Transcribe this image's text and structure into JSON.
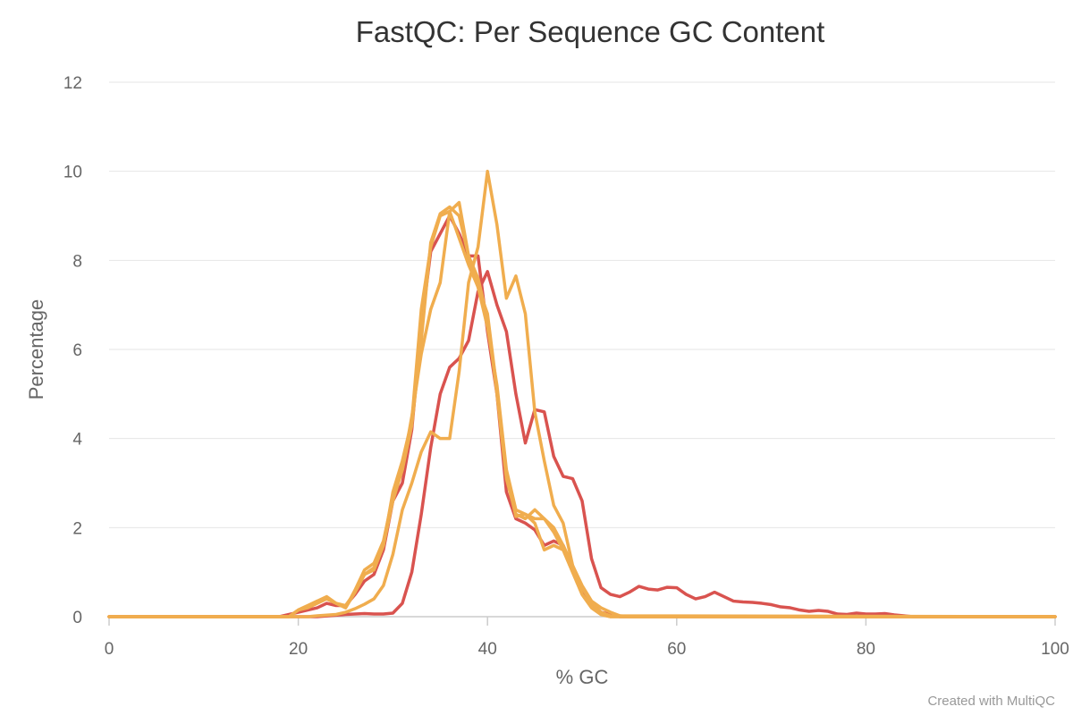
{
  "chart_data": {
    "type": "line",
    "title": "FastQC: Per Sequence GC Content",
    "xlabel": "% GC",
    "ylabel": "Percentage",
    "xlim": [
      0,
      100
    ],
    "ylim": [
      0,
      12
    ],
    "xticks": [
      0,
      20,
      40,
      60,
      80,
      100
    ],
    "yticks": [
      0,
      2,
      4,
      6,
      8,
      10,
      12
    ],
    "grid": true,
    "legend": "none",
    "credit": "Created with MultiQC",
    "series": [
      {
        "color": "#d9534f",
        "points": [
          [
            0,
            0
          ],
          [
            18,
            0
          ],
          [
            20,
            0.1
          ],
          [
            22,
            0.2
          ],
          [
            23,
            0.3
          ],
          [
            24,
            0.25
          ],
          [
            25,
            0.25
          ],
          [
            26,
            0.5
          ],
          [
            27,
            0.8
          ],
          [
            28,
            0.95
          ],
          [
            29,
            1.5
          ],
          [
            30,
            2.6
          ],
          [
            31,
            3.0
          ],
          [
            32,
            4.2
          ],
          [
            33,
            6.5
          ],
          [
            34,
            8.2
          ],
          [
            35,
            8.6
          ],
          [
            36,
            9.0
          ],
          [
            37,
            8.6
          ],
          [
            38,
            8.1
          ],
          [
            39,
            8.1
          ],
          [
            40,
            6.4
          ],
          [
            41,
            5.0
          ],
          [
            42,
            2.8
          ],
          [
            43,
            2.2
          ],
          [
            44,
            2.1
          ],
          [
            45,
            1.95
          ],
          [
            46,
            1.6
          ],
          [
            47,
            1.7
          ],
          [
            48,
            1.6
          ],
          [
            49,
            1.1
          ],
          [
            50,
            0.6
          ],
          [
            51,
            0.3
          ],
          [
            52,
            0.1
          ],
          [
            54,
            0
          ],
          [
            100,
            0
          ]
        ]
      },
      {
        "color": "#d9534f",
        "points": [
          [
            0,
            0
          ],
          [
            22,
            0
          ],
          [
            25,
            0.05
          ],
          [
            27,
            0.07
          ],
          [
            28,
            0.06
          ],
          [
            29,
            0.06
          ],
          [
            30,
            0.08
          ],
          [
            31,
            0.3
          ],
          [
            32,
            1.0
          ],
          [
            33,
            2.3
          ],
          [
            34,
            3.8
          ],
          [
            35,
            5.0
          ],
          [
            36,
            5.6
          ],
          [
            37,
            5.8
          ],
          [
            38,
            6.2
          ],
          [
            39,
            7.3
          ],
          [
            40,
            7.75
          ],
          [
            41,
            7.0
          ],
          [
            42,
            6.4
          ],
          [
            43,
            5.0
          ],
          [
            44,
            3.9
          ],
          [
            45,
            4.65
          ],
          [
            46,
            4.6
          ],
          [
            47,
            3.6
          ],
          [
            48,
            3.15
          ],
          [
            49,
            3.1
          ],
          [
            50,
            2.6
          ],
          [
            51,
            1.3
          ],
          [
            52,
            0.65
          ],
          [
            53,
            0.5
          ],
          [
            54,
            0.45
          ],
          [
            55,
            0.55
          ],
          [
            56,
            0.68
          ],
          [
            57,
            0.62
          ],
          [
            58,
            0.6
          ],
          [
            59,
            0.66
          ],
          [
            60,
            0.65
          ],
          [
            61,
            0.5
          ],
          [
            62,
            0.4
          ],
          [
            63,
            0.45
          ],
          [
            64,
            0.55
          ],
          [
            65,
            0.45
          ],
          [
            66,
            0.35
          ],
          [
            67,
            0.33
          ],
          [
            68,
            0.32
          ],
          [
            69,
            0.3
          ],
          [
            70,
            0.27
          ],
          [
            71,
            0.22
          ],
          [
            72,
            0.2
          ],
          [
            73,
            0.15
          ],
          [
            74,
            0.12
          ],
          [
            75,
            0.14
          ],
          [
            76,
            0.12
          ],
          [
            77,
            0.06
          ],
          [
            78,
            0.05
          ],
          [
            79,
            0.08
          ],
          [
            80,
            0.06
          ],
          [
            81,
            0.06
          ],
          [
            82,
            0.07
          ],
          [
            83,
            0.04
          ],
          [
            84,
            0.02
          ],
          [
            85,
            0
          ],
          [
            100,
            0
          ]
        ]
      },
      {
        "color": "#f0ad4e",
        "points": [
          [
            0,
            0
          ],
          [
            19,
            0
          ],
          [
            20,
            0.15
          ],
          [
            21,
            0.2
          ],
          [
            22,
            0.3
          ],
          [
            23,
            0.4
          ],
          [
            24,
            0.3
          ],
          [
            25,
            0.2
          ],
          [
            26,
            0.55
          ],
          [
            27,
            0.95
          ],
          [
            28,
            1.05
          ],
          [
            29,
            1.6
          ],
          [
            30,
            2.8
          ],
          [
            31,
            3.5
          ],
          [
            32,
            4.4
          ],
          [
            33,
            6.9
          ],
          [
            34,
            8.3
          ],
          [
            35,
            9.0
          ],
          [
            36,
            9.1
          ],
          [
            37,
            8.5
          ],
          [
            38,
            7.9
          ],
          [
            39,
            7.4
          ],
          [
            40,
            6.8
          ],
          [
            41,
            5.1
          ],
          [
            42,
            3.2
          ],
          [
            43,
            2.25
          ],
          [
            44,
            2.3
          ],
          [
            45,
            2.2
          ],
          [
            46,
            2.2
          ],
          [
            47,
            2.0
          ],
          [
            48,
            1.6
          ],
          [
            49,
            1.15
          ],
          [
            50,
            0.65
          ],
          [
            51,
            0.3
          ],
          [
            52,
            0.1
          ],
          [
            53,
            0.02
          ],
          [
            100,
            0
          ]
        ]
      },
      {
        "color": "#f0ad4e",
        "points": [
          [
            0,
            0
          ],
          [
            19,
            0
          ],
          [
            20,
            0.15
          ],
          [
            21,
            0.25
          ],
          [
            22,
            0.35
          ],
          [
            23,
            0.45
          ],
          [
            24,
            0.3
          ],
          [
            25,
            0.2
          ],
          [
            26,
            0.6
          ],
          [
            27,
            1.05
          ],
          [
            28,
            1.2
          ],
          [
            29,
            1.7
          ],
          [
            30,
            2.7
          ],
          [
            31,
            3.3
          ],
          [
            32,
            4.3
          ],
          [
            33,
            6.2
          ],
          [
            34,
            8.4
          ],
          [
            35,
            9.05
          ],
          [
            36,
            9.2
          ],
          [
            37,
            9.0
          ],
          [
            38,
            8.1
          ],
          [
            39,
            7.6
          ],
          [
            40,
            6.7
          ],
          [
            41,
            5.0
          ],
          [
            42,
            3.1
          ],
          [
            43,
            2.3
          ],
          [
            44,
            2.2
          ],
          [
            45,
            2.4
          ],
          [
            46,
            2.2
          ],
          [
            47,
            1.9
          ],
          [
            48,
            1.5
          ],
          [
            49,
            1.0
          ],
          [
            50,
            0.5
          ],
          [
            51,
            0.2
          ],
          [
            52,
            0.05
          ],
          [
            53,
            0
          ],
          [
            100,
            0
          ]
        ]
      },
      {
        "color": "#f0ad4e",
        "points": [
          [
            0,
            0
          ],
          [
            19,
            0
          ],
          [
            20,
            0.15
          ],
          [
            21,
            0.25
          ],
          [
            22,
            0.35
          ],
          [
            23,
            0.4
          ],
          [
            24,
            0.3
          ],
          [
            25,
            0.25
          ],
          [
            26,
            0.55
          ],
          [
            27,
            0.95
          ],
          [
            28,
            1.1
          ],
          [
            29,
            1.6
          ],
          [
            30,
            2.6
          ],
          [
            31,
            3.3
          ],
          [
            32,
            4.5
          ],
          [
            33,
            5.9
          ],
          [
            34,
            6.9
          ],
          [
            35,
            7.5
          ],
          [
            36,
            9.1
          ],
          [
            37,
            9.3
          ],
          [
            38,
            8.1
          ],
          [
            39,
            7.4
          ],
          [
            40,
            6.5
          ],
          [
            41,
            5.2
          ],
          [
            42,
            3.3
          ],
          [
            43,
            2.4
          ],
          [
            44,
            2.3
          ],
          [
            45,
            2.1
          ],
          [
            46,
            1.5
          ],
          [
            47,
            1.6
          ],
          [
            48,
            1.5
          ],
          [
            49,
            1.0
          ],
          [
            50,
            0.5
          ],
          [
            51,
            0.2
          ],
          [
            52,
            0.05
          ],
          [
            53,
            0
          ],
          [
            100,
            0
          ]
        ]
      },
      {
        "color": "#f0ad4e",
        "points": [
          [
            0,
            0
          ],
          [
            21,
            0
          ],
          [
            22,
            0.02
          ],
          [
            24,
            0.05
          ],
          [
            25,
            0.1
          ],
          [
            26,
            0.18
          ],
          [
            27,
            0.28
          ],
          [
            28,
            0.4
          ],
          [
            29,
            0.7
          ],
          [
            30,
            1.4
          ],
          [
            31,
            2.4
          ],
          [
            32,
            3.0
          ],
          [
            33,
            3.7
          ],
          [
            34,
            4.15
          ],
          [
            35,
            4.0
          ],
          [
            36,
            4.0
          ],
          [
            37,
            5.5
          ],
          [
            38,
            7.5
          ],
          [
            39,
            8.3
          ],
          [
            40,
            10.0
          ],
          [
            41,
            8.8
          ],
          [
            42,
            7.15
          ],
          [
            43,
            7.65
          ],
          [
            44,
            6.8
          ],
          [
            45,
            4.6
          ],
          [
            46,
            3.5
          ],
          [
            47,
            2.5
          ],
          [
            48,
            2.1
          ],
          [
            49,
            1.15
          ],
          [
            50,
            0.7
          ],
          [
            51,
            0.35
          ],
          [
            52,
            0.2
          ],
          [
            53,
            0.1
          ],
          [
            54,
            0.02
          ],
          [
            55,
            0
          ],
          [
            100,
            0
          ]
        ]
      }
    ]
  }
}
